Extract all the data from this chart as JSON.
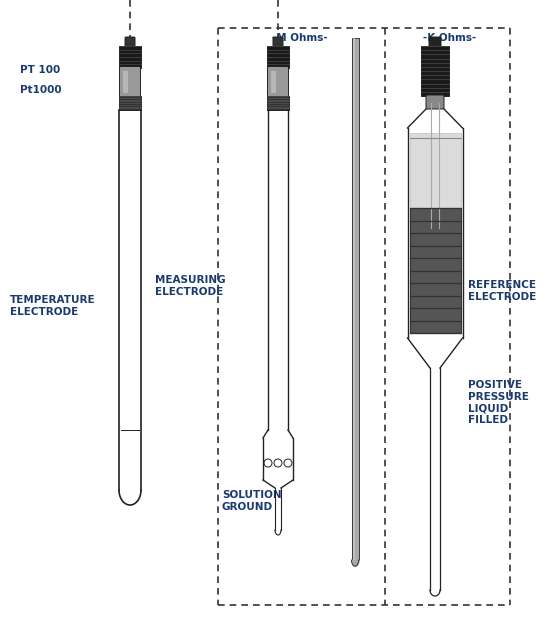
{
  "bg_color": "#ffffff",
  "label_color": "#1a3a6e",
  "line_color": "#222222",
  "dashed_color": "#333333",
  "labels": {
    "pt100": "PT 100",
    "pt1000": "Pt1000",
    "temp_electrode": "TEMPERATURE\nELECTRODE",
    "meas_electrode": "MEASURING\nELECTRODE",
    "sol_ground": "SOLUTION\nGROUND",
    "ref_electrode": "REFERENCE\nELECTRODE",
    "pos_pressure": "POSITIVE\nPRESSURE\nLIQUID\nFILLED",
    "m_ohms": "-M Ohms-",
    "k_ohms": "-K Ohms-"
  }
}
